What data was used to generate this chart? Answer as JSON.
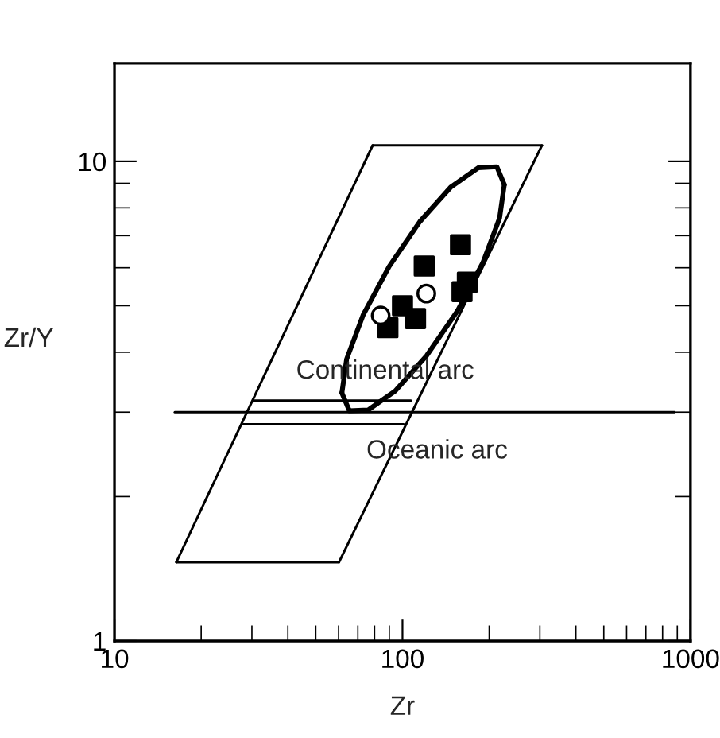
{
  "chart_data": {
    "type": "line",
    "xlabel": "Zr",
    "ylabel": "Zr/Y",
    "log": "xy",
    "xlim": [
      10,
      1000
    ],
    "ylim": [
      1,
      16
    ],
    "xticks": [
      10,
      100,
      1000
    ],
    "yticks": [
      1,
      10
    ],
    "grid": false,
    "legend": false,
    "series": [
      {
        "color": "#000000",
        "line_style": "solid",
        "marker": "none",
        "x": [
          16.4,
          60.2
        ],
        "values": [
          1.46,
          1.46
        ]
      },
      {
        "color": "#000000",
        "line_style": "solid",
        "marker": "none",
        "x": [
          60.2,
          305
        ],
        "values": [
          1.46,
          10.8
        ]
      },
      {
        "color": "#000000",
        "line_style": "solid",
        "marker": "none",
        "x": [
          78.8,
          305
        ],
        "values": [
          10.8,
          10.8
        ]
      },
      {
        "color": "#000000",
        "line_style": "solid",
        "marker": "none",
        "x": [
          16.4,
          78.8
        ],
        "values": [
          1.46,
          10.8
        ]
      },
      {
        "color": "#000000",
        "line_style": "solid",
        "marker": "none",
        "x": [
          61.6,
          64.0,
          73.1,
          89.8,
          114.9,
          147.5,
          183.3,
          212.8,
          225.7
        ],
        "values": [
          3.29,
          3.87,
          4.79,
          6.03,
          7.49,
          8.85,
          9.7,
          9.74,
          8.94
        ]
      },
      {
        "color": "#000000",
        "line_style": "solid",
        "marker": "none",
        "x": [
          61.6,
          65.4,
          75.9,
          94.3,
          121.1,
          155.0,
          190.2,
          217.3,
          225.7
        ],
        "values": [
          3.29,
          3.02,
          3.03,
          3.32,
          3.93,
          4.87,
          6.15,
          7.61,
          8.94
        ]
      },
      {
        "color": "#000000",
        "line_style": "solid",
        "marker": "none",
        "x": [
          16.2,
          880
        ],
        "values": [
          3,
          3
        ]
      },
      {
        "color": "#000000",
        "line_style": "solid",
        "marker": "none",
        "x": [
          30.4,
          107
        ],
        "values": [
          3.17,
          3.17
        ]
      },
      {
        "color": "#000000",
        "line_style": "solid",
        "marker": "none",
        "x": [
          28,
          101
        ],
        "values": [
          2.83,
          2.83
        ]
      },
      {
        "type": "scatter",
        "color": "#000000",
        "marker": "square",
        "x": [
          89,
          100,
          111,
          119,
          159,
          168,
          161
        ],
        "values": [
          4.5,
          5.0,
          4.7,
          6.05,
          6.7,
          5.6,
          5.35
        ]
      },
      {
        "type": "scatter",
        "color": "#000000",
        "marker": "circle",
        "x": [
          84,
          121
        ],
        "values": [
          4.77,
          5.3
        ]
      }
    ],
    "annotations": [
      "Continental arc",
      "Oceanic arc"
    ]
  }
}
